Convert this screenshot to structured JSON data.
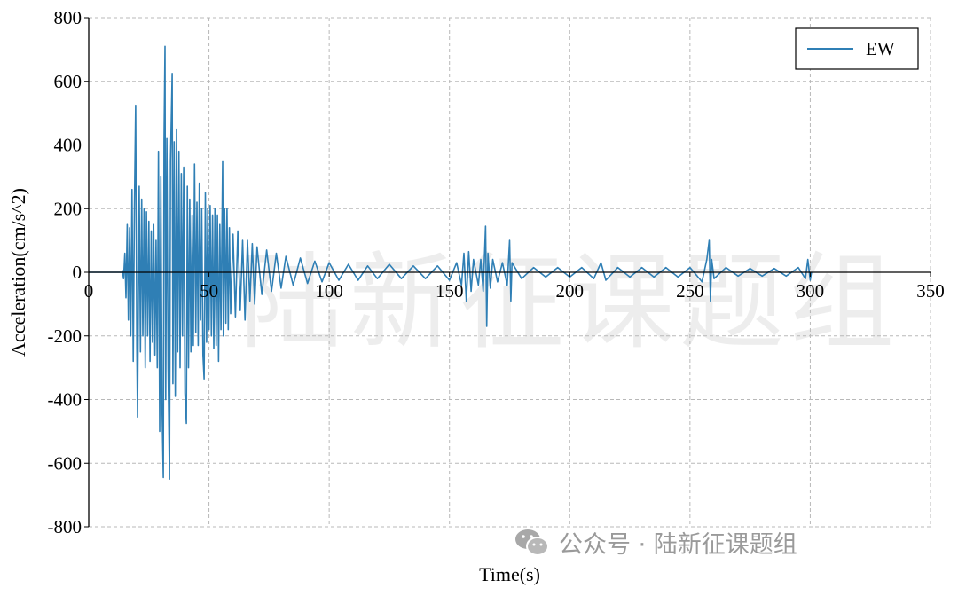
{
  "chart_data": {
    "type": "line",
    "title": "",
    "xlabel": "Time(s)",
    "ylabel": "Acceleration(cm/s^2)",
    "xlim": [
      0,
      350
    ],
    "ylim": [
      -800,
      800
    ],
    "xticks": [
      0,
      50,
      100,
      150,
      200,
      250,
      300,
      350
    ],
    "yticks": [
      -800,
      -600,
      -400,
      -200,
      0,
      200,
      400,
      600,
      800
    ],
    "grid": true,
    "legend_placement": "top-right",
    "zero_line": true,
    "series": [
      {
        "name": "EW",
        "color": "#2f7fb5",
        "points": [
          [
            0,
            0
          ],
          [
            14,
            0
          ],
          [
            14,
            5
          ],
          [
            14.5,
            -20
          ],
          [
            15,
            60
          ],
          [
            15.5,
            -80
          ],
          [
            16,
            150
          ],
          [
            16.5,
            -150
          ],
          [
            17,
            140
          ],
          [
            17.5,
            -200
          ],
          [
            18,
            260
          ],
          [
            18.5,
            -280
          ],
          [
            19,
            200
          ],
          [
            19.5,
            525
          ],
          [
            20,
            -230
          ],
          [
            20.3,
            -455
          ],
          [
            21,
            270
          ],
          [
            21.5,
            -250
          ],
          [
            22,
            230
          ],
          [
            22.5,
            -200
          ],
          [
            23,
            200
          ],
          [
            23.5,
            -300
          ],
          [
            24,
            190
          ],
          [
            24.5,
            -200
          ],
          [
            25,
            160
          ],
          [
            25.5,
            -280
          ],
          [
            26,
            130
          ],
          [
            26.5,
            -220
          ],
          [
            27,
            150
          ],
          [
            27.5,
            -260
          ],
          [
            28,
            100
          ],
          [
            28.5,
            -300
          ],
          [
            29,
            380
          ],
          [
            29.5,
            -500
          ],
          [
            30,
            300
          ],
          [
            30.5,
            -430
          ],
          [
            31,
            -645
          ],
          [
            31.3,
            410
          ],
          [
            31.7,
            710
          ],
          [
            32,
            -400
          ],
          [
            32.5,
            420
          ],
          [
            33,
            -300
          ],
          [
            33.6,
            -650
          ],
          [
            34,
            350
          ],
          [
            34.7,
            625
          ],
          [
            35,
            -350
          ],
          [
            35.5,
            410
          ],
          [
            36,
            -390
          ],
          [
            36.5,
            450
          ],
          [
            37,
            -250
          ],
          [
            37.5,
            380
          ],
          [
            38,
            -300
          ],
          [
            38.5,
            310
          ],
          [
            39,
            -200
          ],
          [
            39.5,
            330
          ],
          [
            40,
            -380
          ],
          [
            40.6,
            -475
          ],
          [
            41,
            270
          ],
          [
            41.5,
            -300
          ],
          [
            42,
            230
          ],
          [
            42.5,
            -250
          ],
          [
            43,
            180
          ],
          [
            43.5,
            -230
          ],
          [
            44,
            340
          ],
          [
            44.5,
            -190
          ],
          [
            45,
            220
          ],
          [
            45.5,
            -230
          ],
          [
            46,
            280
          ],
          [
            46.5,
            -150
          ],
          [
            47,
            200
          ],
          [
            47.5,
            -260
          ],
          [
            48,
            -335
          ],
          [
            48.5,
            250
          ],
          [
            49,
            -220
          ],
          [
            49.5,
            200
          ],
          [
            50,
            -180
          ],
          [
            50.5,
            210
          ],
          [
            51,
            -200
          ],
          [
            51.5,
            180
          ],
          [
            52,
            -240
          ],
          [
            52.5,
            200
          ],
          [
            53,
            -230
          ],
          [
            53.5,
            180
          ],
          [
            54,
            -280
          ],
          [
            54.5,
            150
          ],
          [
            55,
            -180
          ],
          [
            55.7,
            350
          ],
          [
            56,
            -200
          ],
          [
            56.5,
            200
          ],
          [
            57,
            -160
          ],
          [
            57.5,
            200
          ],
          [
            58,
            -180
          ],
          [
            58.5,
            140
          ],
          [
            59,
            -130
          ],
          [
            60,
            120
          ],
          [
            61,
            -140
          ],
          [
            62,
            130
          ],
          [
            63,
            -120
          ],
          [
            64,
            100
          ],
          [
            65,
            -150
          ],
          [
            66,
            100
          ],
          [
            67,
            -90
          ],
          [
            68,
            90
          ],
          [
            69,
            -100
          ],
          [
            70,
            80
          ],
          [
            72,
            -70
          ],
          [
            74,
            70
          ],
          [
            76,
            -60
          ],
          [
            78,
            60
          ],
          [
            80,
            -50
          ],
          [
            82,
            50
          ],
          [
            85,
            -40
          ],
          [
            88,
            45
          ],
          [
            91,
            -35
          ],
          [
            94,
            35
          ],
          [
            97,
            -30
          ],
          [
            100,
            30
          ],
          [
            104,
            -25
          ],
          [
            108,
            25
          ],
          [
            112,
            -25
          ],
          [
            116,
            20
          ],
          [
            120,
            -20
          ],
          [
            125,
            25
          ],
          [
            130,
            -20
          ],
          [
            135,
            20
          ],
          [
            140,
            -20
          ],
          [
            145,
            20
          ],
          [
            150,
            -25
          ],
          [
            153,
            30
          ],
          [
            155,
            -40
          ],
          [
            156,
            60
          ],
          [
            157,
            -90
          ],
          [
            158,
            65
          ],
          [
            159,
            -60
          ],
          [
            160,
            40
          ],
          [
            162,
            -40
          ],
          [
            163,
            40
          ],
          [
            164,
            -60
          ],
          [
            165,
            145
          ],
          [
            165.5,
            -170
          ],
          [
            166,
            60
          ],
          [
            167,
            -50
          ],
          [
            168,
            40
          ],
          [
            170,
            -30
          ],
          [
            172,
            30
          ],
          [
            174,
            -40
          ],
          [
            175,
            100
          ],
          [
            175.5,
            -90
          ],
          [
            176,
            30
          ],
          [
            180,
            -20
          ],
          [
            185,
            15
          ],
          [
            190,
            -15
          ],
          [
            195,
            15
          ],
          [
            200,
            -15
          ],
          [
            205,
            15
          ],
          [
            210,
            -20
          ],
          [
            213,
            30
          ],
          [
            215,
            -25
          ],
          [
            220,
            15
          ],
          [
            225,
            -15
          ],
          [
            230,
            15
          ],
          [
            235,
            -15
          ],
          [
            240,
            15
          ],
          [
            245,
            -15
          ],
          [
            250,
            15
          ],
          [
            255,
            -30
          ],
          [
            257,
            40
          ],
          [
            258,
            100
          ],
          [
            258.5,
            -90
          ],
          [
            259,
            40
          ],
          [
            260,
            -20
          ],
          [
            265,
            15
          ],
          [
            270,
            -12
          ],
          [
            275,
            12
          ],
          [
            280,
            -12
          ],
          [
            285,
            12
          ],
          [
            290,
            -12
          ],
          [
            295,
            15
          ],
          [
            298,
            -20
          ],
          [
            299,
            40
          ],
          [
            300,
            -25
          ],
          [
            300.5,
            0
          ]
        ]
      }
    ]
  },
  "watermark": {
    "center_text": "陆新征课题组",
    "footer_text": "公众号 · 陆新征课题组"
  }
}
